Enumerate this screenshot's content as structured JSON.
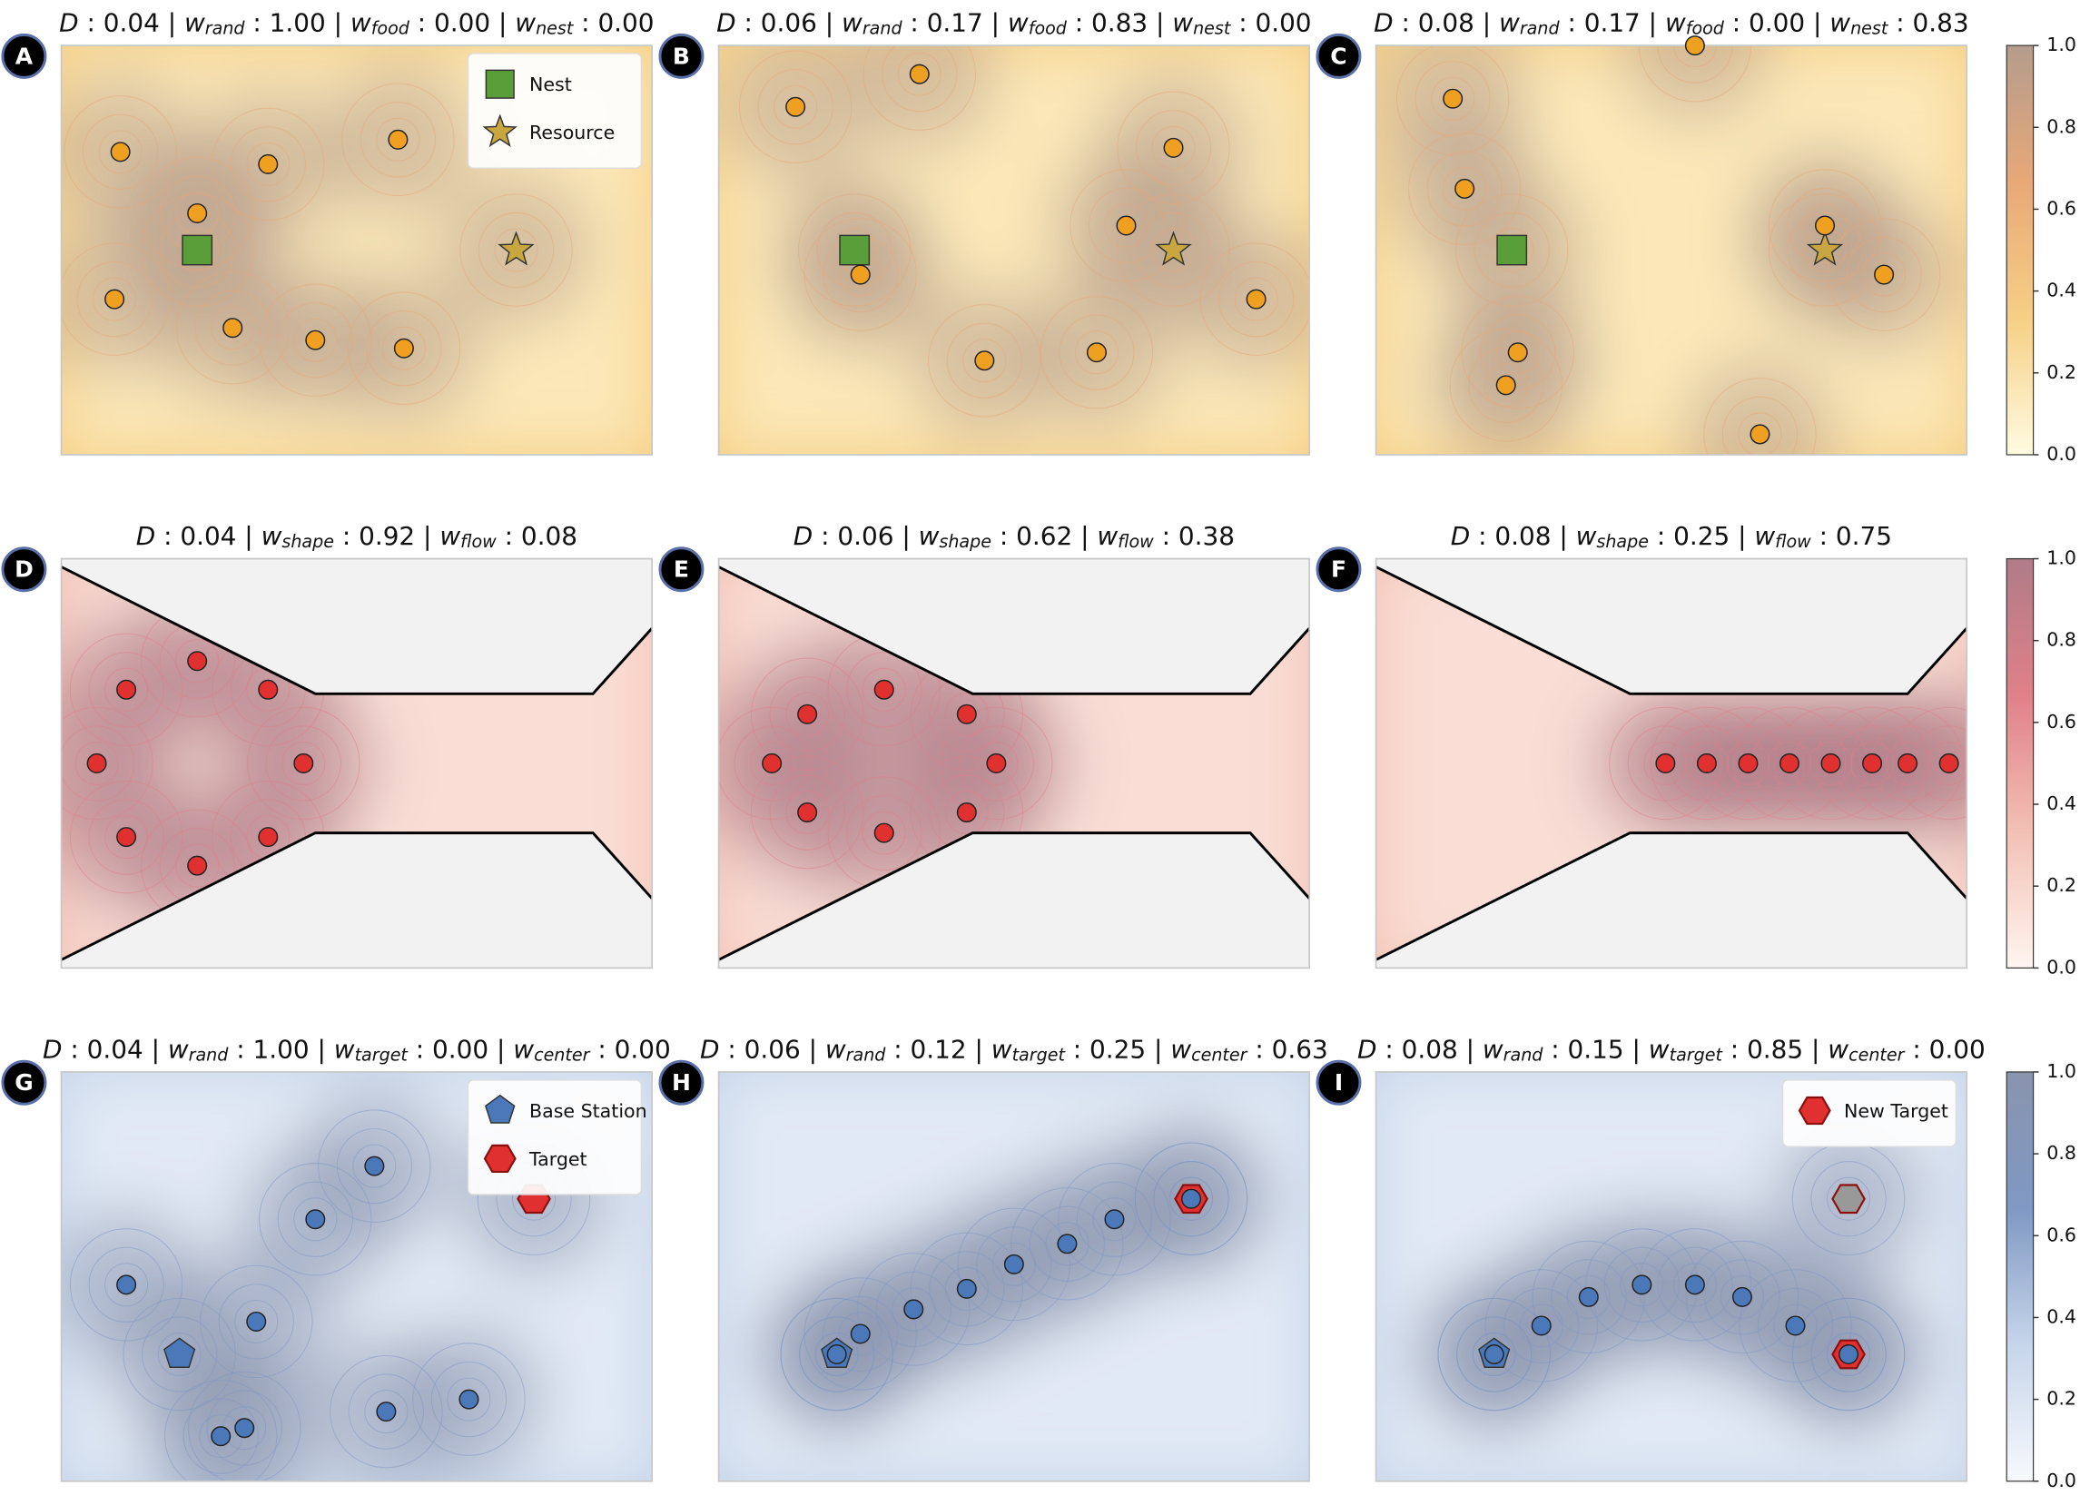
{
  "chart_data": [
    {
      "type": "field",
      "label": "A",
      "title": [
        {
          "text": "D",
          "style": "italic"
        },
        {
          "text": " : 0.04 | "
        },
        {
          "text": "w",
          "style": "italic"
        },
        {
          "text": "rand",
          "style": "sub"
        },
        {
          "text": " : 1.00 | "
        },
        {
          "text": "w",
          "style": "italic"
        },
        {
          "text": "food",
          "style": "sub"
        },
        {
          "text": " : 0.00 | "
        },
        {
          "text": "w",
          "style": "italic"
        },
        {
          "text": "nest",
          "style": "sub"
        },
        {
          "text": " : 0.00"
        }
      ],
      "xlim": [
        0,
        1
      ],
      "ylim": [
        0,
        1
      ],
      "colormap": [
        "#fffbe0",
        "#f6cf85",
        "#e8a878",
        "#b59c8c"
      ],
      "agents": {
        "color": "#f0a020",
        "x": [
          0.1,
          0.35,
          0.57,
          0.23,
          0.09,
          0.29,
          0.43,
          0.58
        ],
        "y": [
          0.74,
          0.71,
          0.77,
          0.59,
          0.38,
          0.31,
          0.28,
          0.26
        ]
      },
      "markers": [
        {
          "name": "Nest",
          "shape": "square",
          "color": "#5a9e3a",
          "x": 0.23,
          "y": 0.5
        },
        {
          "name": "Resource",
          "shape": "star",
          "color": "#c8a640",
          "x": 0.77,
          "y": 0.5
        }
      ],
      "legend": "upper right"
    },
    {
      "type": "field",
      "label": "B",
      "title": [
        {
          "text": "D",
          "style": "italic"
        },
        {
          "text": " : 0.06 | "
        },
        {
          "text": "w",
          "style": "italic"
        },
        {
          "text": "rand",
          "style": "sub"
        },
        {
          "text": " : 0.17 | "
        },
        {
          "text": "w",
          "style": "italic"
        },
        {
          "text": "food",
          "style": "sub"
        },
        {
          "text": " : 0.83 | "
        },
        {
          "text": "w",
          "style": "italic"
        },
        {
          "text": "nest",
          "style": "sub"
        },
        {
          "text": " : 0.00"
        }
      ],
      "xlim": [
        0,
        1
      ],
      "ylim": [
        0,
        1
      ],
      "colormap": [
        "#fffbe0",
        "#f6cf85",
        "#e8a878",
        "#b59c8c"
      ],
      "agents": {
        "color": "#f0a020",
        "x": [
          0.13,
          0.34,
          0.77,
          0.69,
          0.24,
          0.91,
          0.45,
          0.64
        ],
        "y": [
          0.85,
          0.93,
          0.75,
          0.56,
          0.44,
          0.38,
          0.23,
          0.25
        ]
      },
      "markers": [
        {
          "shape": "square",
          "color": "#5a9e3a",
          "x": 0.23,
          "y": 0.5
        },
        {
          "shape": "star",
          "color": "#c8a640",
          "x": 0.77,
          "y": 0.5
        }
      ]
    },
    {
      "type": "field",
      "label": "C",
      "title": [
        {
          "text": "D",
          "style": "italic"
        },
        {
          "text": " : 0.08 | "
        },
        {
          "text": "w",
          "style": "italic"
        },
        {
          "text": "rand",
          "style": "sub"
        },
        {
          "text": " : 0.17 | "
        },
        {
          "text": "w",
          "style": "italic"
        },
        {
          "text": "food",
          "style": "sub"
        },
        {
          "text": " : 0.00 | "
        },
        {
          "text": "w",
          "style": "italic"
        },
        {
          "text": "nest",
          "style": "sub"
        },
        {
          "text": " : 0.83"
        }
      ],
      "xlim": [
        0,
        1
      ],
      "ylim": [
        0,
        1
      ],
      "colormap": [
        "#fffbe0",
        "#f6cf85",
        "#e8a878",
        "#b59c8c"
      ],
      "agents": {
        "color": "#f0a020",
        "x": [
          0.13,
          0.15,
          0.76,
          0.86,
          0.24,
          0.22,
          0.65,
          0.54
        ],
        "y": [
          0.87,
          0.65,
          0.56,
          0.44,
          0.25,
          0.17,
          0.05,
          1.0
        ]
      },
      "markers": [
        {
          "shape": "square",
          "color": "#5a9e3a",
          "x": 0.23,
          "y": 0.5
        },
        {
          "shape": "star",
          "color": "#c8a640",
          "x": 0.76,
          "y": 0.5
        }
      ]
    },
    {
      "type": "field",
      "label": "D",
      "environment": "channel",
      "title": [
        {
          "text": "D",
          "style": "italic"
        },
        {
          "text": " : 0.04 | "
        },
        {
          "text": "w",
          "style": "italic"
        },
        {
          "text": "shape",
          "style": "sub"
        },
        {
          "text": " : 0.92 | "
        },
        {
          "text": "w",
          "style": "italic"
        },
        {
          "text": "flow",
          "style": "sub"
        },
        {
          "text": " : 0.08"
        }
      ],
      "xlim": [
        0,
        1
      ],
      "ylim": [
        0,
        1
      ],
      "colormap": [
        "#fff5f0",
        "#f3c0b4",
        "#e08088",
        "#b07c88"
      ],
      "agents": {
        "color": "#e03030",
        "x": [
          0.23,
          0.11,
          0.35,
          0.06,
          0.41,
          0.11,
          0.35,
          0.23
        ],
        "y": [
          0.75,
          0.68,
          0.68,
          0.5,
          0.5,
          0.32,
          0.32,
          0.25
        ]
      },
      "markers": []
    },
    {
      "type": "field",
      "label": "E",
      "environment": "channel",
      "title": [
        {
          "text": "D",
          "style": "italic"
        },
        {
          "text": " : 0.06 | "
        },
        {
          "text": "w",
          "style": "italic"
        },
        {
          "text": "shape",
          "style": "sub"
        },
        {
          "text": " : 0.62 | "
        },
        {
          "text": "w",
          "style": "italic"
        },
        {
          "text": "flow",
          "style": "sub"
        },
        {
          "text": " : 0.38"
        }
      ],
      "xlim": [
        0,
        1
      ],
      "ylim": [
        0,
        1
      ],
      "colormap": [
        "#fff5f0",
        "#f3c0b4",
        "#e08088",
        "#b07c88"
      ],
      "agents": {
        "color": "#e03030",
        "x": [
          0.15,
          0.28,
          0.42,
          0.09,
          0.47,
          0.15,
          0.28,
          0.42
        ],
        "y": [
          0.62,
          0.68,
          0.62,
          0.5,
          0.5,
          0.38,
          0.33,
          0.38
        ]
      },
      "markers": []
    },
    {
      "type": "field",
      "label": "F",
      "environment": "channel",
      "title": [
        {
          "text": "D",
          "style": "italic"
        },
        {
          "text": " : 0.08 | "
        },
        {
          "text": "w",
          "style": "italic"
        },
        {
          "text": "shape",
          "style": "sub"
        },
        {
          "text": " : 0.25 | "
        },
        {
          "text": "w",
          "style": "italic"
        },
        {
          "text": "flow",
          "style": "sub"
        },
        {
          "text": " : 0.75"
        }
      ],
      "xlim": [
        0,
        1
      ],
      "ylim": [
        0,
        1
      ],
      "colormap": [
        "#fff5f0",
        "#f3c0b4",
        "#e08088",
        "#b07c88"
      ],
      "agents": {
        "color": "#e03030",
        "x": [
          0.49,
          0.56,
          0.63,
          0.7,
          0.77,
          0.84,
          0.9,
          0.97
        ],
        "y": [
          0.5,
          0.5,
          0.5,
          0.5,
          0.5,
          0.5,
          0.5,
          0.5
        ]
      },
      "markers": []
    },
    {
      "type": "field",
      "label": "G",
      "title": [
        {
          "text": "D",
          "style": "italic"
        },
        {
          "text": " : 0.04 | "
        },
        {
          "text": "w",
          "style": "italic"
        },
        {
          "text": "rand",
          "style": "sub"
        },
        {
          "text": " : 1.00 | "
        },
        {
          "text": "w",
          "style": "italic"
        },
        {
          "text": "target",
          "style": "sub"
        },
        {
          "text": " : 0.00 | "
        },
        {
          "text": "w",
          "style": "italic"
        },
        {
          "text": "center",
          "style": "sub"
        },
        {
          "text": " : 0.00"
        }
      ],
      "xlim": [
        0,
        1
      ],
      "ylim": [
        0,
        1
      ],
      "colormap": [
        "#f7f9fd",
        "#c6d5ea",
        "#7f98c4",
        "#8a94ae"
      ],
      "agents": {
        "color": "#4a78b8",
        "x": [
          0.53,
          0.43,
          0.11,
          0.33,
          0.27,
          0.31,
          0.55,
          0.69
        ],
        "y": [
          0.77,
          0.64,
          0.48,
          0.39,
          0.11,
          0.13,
          0.17,
          0.2
        ]
      },
      "markers": [
        {
          "name": "Base Station",
          "shape": "pentagon",
          "color": "#4a78b8",
          "x": 0.2,
          "y": 0.31
        },
        {
          "name": "Target",
          "shape": "hexagon",
          "color": "#e03030",
          "x": 0.8,
          "y": 0.69
        }
      ],
      "legend": "upper right"
    },
    {
      "type": "field",
      "label": "H",
      "title": [
        {
          "text": "D",
          "style": "italic"
        },
        {
          "text": " : 0.06 | "
        },
        {
          "text": "w",
          "style": "italic"
        },
        {
          "text": "rand",
          "style": "sub"
        },
        {
          "text": " : 0.12 | "
        },
        {
          "text": "w",
          "style": "italic"
        },
        {
          "text": "target",
          "style": "sub"
        },
        {
          "text": " : 0.25 | "
        },
        {
          "text": "w",
          "style": "italic"
        },
        {
          "text": "center",
          "style": "sub"
        },
        {
          "text": " : 0.63"
        }
      ],
      "xlim": [
        0,
        1
      ],
      "ylim": [
        0,
        1
      ],
      "colormap": [
        "#f7f9fd",
        "#c6d5ea",
        "#7f98c4",
        "#8a94ae"
      ],
      "agents": {
        "color": "#4a78b8",
        "x": [
          0.2,
          0.24,
          0.33,
          0.42,
          0.5,
          0.59,
          0.67,
          0.8
        ],
        "y": [
          0.31,
          0.36,
          0.42,
          0.47,
          0.53,
          0.58,
          0.64,
          0.69
        ]
      },
      "markers": [
        {
          "shape": "pentagon",
          "color": "#4a78b8",
          "x": 0.2,
          "y": 0.31
        },
        {
          "shape": "hexagon",
          "color": "#e03030",
          "x": 0.8,
          "y": 0.69
        }
      ]
    },
    {
      "type": "field",
      "label": "I",
      "title": [
        {
          "text": "D",
          "style": "italic"
        },
        {
          "text": " : 0.08 | "
        },
        {
          "text": "w",
          "style": "italic"
        },
        {
          "text": "rand",
          "style": "sub"
        },
        {
          "text": " : 0.15 | "
        },
        {
          "text": "w",
          "style": "italic"
        },
        {
          "text": "target",
          "style": "sub"
        },
        {
          "text": " : 0.85 | "
        },
        {
          "text": "w",
          "style": "italic"
        },
        {
          "text": "center",
          "style": "sub"
        },
        {
          "text": " : 0.00"
        }
      ],
      "xlim": [
        0,
        1
      ],
      "ylim": [
        0,
        1
      ],
      "colormap": [
        "#f7f9fd",
        "#c6d5ea",
        "#7f98c4",
        "#8a94ae"
      ],
      "agents": {
        "color": "#4a78b8",
        "x": [
          0.2,
          0.28,
          0.36,
          0.45,
          0.54,
          0.62,
          0.71,
          0.8
        ],
        "y": [
          0.31,
          0.38,
          0.45,
          0.48,
          0.48,
          0.45,
          0.38,
          0.31
        ]
      },
      "markers": [
        {
          "shape": "hexagon",
          "color": "#999999",
          "x": 0.8,
          "y": 0.69,
          "opacity": 0.35
        },
        {
          "shape": "pentagon",
          "color": "#4a78b8",
          "x": 0.2,
          "y": 0.31
        },
        {
          "name": "New Target",
          "shape": "hexagon",
          "color": "#e03030",
          "x": 0.8,
          "y": 0.31
        }
      ],
      "legend": "upper right"
    },
    {
      "type": "colorbar",
      "colormap": [
        "#fffbe0",
        "#f6cf85",
        "#e8a878",
        "#b59c8c"
      ],
      "ylim": [
        0,
        1
      ],
      "yticks": [
        {
          "value": 0,
          "label": "0.0"
        },
        {
          "value": 0.2,
          "label": "0.2"
        },
        {
          "value": 0.4,
          "label": "0.4"
        },
        {
          "value": 0.6,
          "label": "0.6"
        },
        {
          "value": 0.8,
          "label": "0.8"
        },
        {
          "value": 1,
          "label": "1.0"
        }
      ]
    },
    {
      "type": "colorbar",
      "colormap": [
        "#fff5f0",
        "#f3c0b4",
        "#e08088",
        "#b07c88"
      ],
      "ylim": [
        0,
        1
      ],
      "yticks": [
        {
          "value": 0,
          "label": "0.0"
        },
        {
          "value": 0.2,
          "label": "0.2"
        },
        {
          "value": 0.4,
          "label": "0.4"
        },
        {
          "value": 0.6,
          "label": "0.6"
        },
        {
          "value": 0.8,
          "label": "0.8"
        },
        {
          "value": 1,
          "label": "1.0"
        }
      ]
    },
    {
      "type": "colorbar",
      "colormap": [
        "#f7f9fd",
        "#c6d5ea",
        "#7f98c4",
        "#8a94ae"
      ],
      "ylim": [
        0,
        1
      ],
      "yticks": [
        {
          "value": 0,
          "label": "0.0"
        },
        {
          "value": 0.2,
          "label": "0.2"
        },
        {
          "value": 0.4,
          "label": "0.4"
        },
        {
          "value": 0.6,
          "label": "0.6"
        },
        {
          "value": 0.8,
          "label": "0.8"
        },
        {
          "value": 1,
          "label": "1.0"
        }
      ]
    }
  ]
}
